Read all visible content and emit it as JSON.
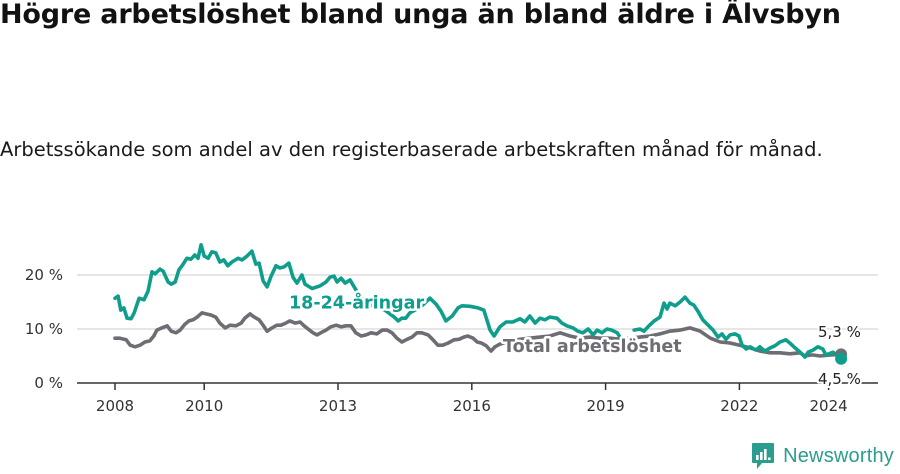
{
  "header": {
    "title": "Högre arbetslöshet bland unga än bland äldre i Älvsbyn",
    "subtitle": "Arbetssökande som andel av den registerbaserade arbetskraften månad för månad."
  },
  "footer": {
    "brand": "Newsworthy",
    "brand_color": "#2a9d8f",
    "icon": "bar-chart-speech-bubble-icon"
  },
  "colors": {
    "youth": "#0f9e8c",
    "total": "#6e6d73",
    "grid": "#dddddd",
    "axis": "#333333"
  },
  "chart_data": {
    "type": "line",
    "title": "Högre arbetslöshet bland unga än bland äldre i Älvsbyn",
    "subtitle": "Arbetssökande som andel av den registerbaserade arbetskraften månad för månad.",
    "xlabel": "",
    "ylabel": "",
    "xlim": [
      2007.2,
      2025.2
    ],
    "ylim": [
      0,
      25
    ],
    "grid": true,
    "y_ticks": [
      {
        "value": 0,
        "label": "0 %"
      },
      {
        "value": 10,
        "label": "10 %"
      },
      {
        "value": 20,
        "label": "20 %"
      }
    ],
    "x_ticks": [
      {
        "value": 2008,
        "label": "2008"
      },
      {
        "value": 2010,
        "label": "2010"
      },
      {
        "value": 2013,
        "label": "2013"
      },
      {
        "value": 2016,
        "label": "2016"
      },
      {
        "value": 2019,
        "label": "2019"
      },
      {
        "value": 2022,
        "label": "2022"
      },
      {
        "value": 2024,
        "label": "2024"
      }
    ],
    "series": [
      {
        "name": "18-24-åringar",
        "color": "#0f9e8c",
        "label": {
          "text": "18-24-åringar",
          "x": 2012.8,
          "y": 14.9
        },
        "end_value": 4.5,
        "end_label": "4,5 %",
        "points": [
          [
            2008.0,
            15.7
          ],
          [
            2008.07,
            16.1
          ],
          [
            2008.13,
            13.5
          ],
          [
            2008.2,
            13.9
          ],
          [
            2008.27,
            12.0
          ],
          [
            2008.36,
            11.9
          ],
          [
            2008.43,
            13.0
          ],
          [
            2008.54,
            15.7
          ],
          [
            2008.65,
            15.4
          ],
          [
            2008.74,
            17.0
          ],
          [
            2008.83,
            20.6
          ],
          [
            2008.9,
            20.2
          ],
          [
            2009.01,
            21.1
          ],
          [
            2009.08,
            20.7
          ],
          [
            2009.19,
            18.7
          ],
          [
            2009.26,
            18.3
          ],
          [
            2009.35,
            18.7
          ],
          [
            2009.43,
            20.9
          ],
          [
            2009.52,
            21.9
          ],
          [
            2009.61,
            23.1
          ],
          [
            2009.7,
            22.9
          ],
          [
            2009.79,
            23.7
          ],
          [
            2009.86,
            23.1
          ],
          [
            2009.93,
            25.6
          ],
          [
            2010.0,
            23.5
          ],
          [
            2010.09,
            23.1
          ],
          [
            2010.17,
            24.3
          ],
          [
            2010.26,
            24.1
          ],
          [
            2010.35,
            22.4
          ],
          [
            2010.44,
            22.8
          ],
          [
            2010.53,
            21.7
          ],
          [
            2010.62,
            22.4
          ],
          [
            2010.76,
            23.1
          ],
          [
            2010.85,
            22.8
          ],
          [
            2010.96,
            23.5
          ],
          [
            2011.07,
            24.4
          ],
          [
            2011.16,
            22.0
          ],
          [
            2011.23,
            22.2
          ],
          [
            2011.32,
            18.9
          ],
          [
            2011.41,
            17.8
          ],
          [
            2011.5,
            19.8
          ],
          [
            2011.61,
            21.7
          ],
          [
            2011.7,
            21.3
          ],
          [
            2011.79,
            21.5
          ],
          [
            2011.9,
            22.2
          ],
          [
            2011.99,
            19.6
          ],
          [
            2012.08,
            18.5
          ],
          [
            2012.19,
            20.0
          ],
          [
            2012.26,
            18.3
          ],
          [
            2012.42,
            17.5
          ],
          [
            2012.6,
            18.0
          ],
          [
            2012.73,
            18.7
          ],
          [
            2012.82,
            19.6
          ],
          [
            2012.91,
            19.8
          ],
          [
            2012.98,
            18.7
          ],
          [
            2013.07,
            19.4
          ],
          [
            2013.16,
            18.5
          ],
          [
            2013.27,
            19.1
          ],
          [
            2013.49,
            16.0
          ],
          [
            2013.72,
            14.5
          ],
          [
            2014.05,
            13.5
          ],
          [
            2014.26,
            12.2
          ],
          [
            2014.35,
            11.5
          ],
          [
            2014.43,
            12.0
          ],
          [
            2014.52,
            12.0
          ],
          [
            2014.61,
            13.0
          ],
          [
            2014.84,
            14.0
          ],
          [
            2015.06,
            15.7
          ],
          [
            2015.2,
            14.6
          ],
          [
            2015.31,
            13.3
          ],
          [
            2015.42,
            11.5
          ],
          [
            2015.56,
            12.4
          ],
          [
            2015.69,
            13.9
          ],
          [
            2015.78,
            14.3
          ],
          [
            2015.96,
            14.2
          ],
          [
            2016.14,
            13.9
          ],
          [
            2016.27,
            13.5
          ],
          [
            2016.41,
            9.8
          ],
          [
            2016.5,
            8.7
          ],
          [
            2016.63,
            10.4
          ],
          [
            2016.77,
            11.3
          ],
          [
            2016.92,
            11.3
          ],
          [
            2017.08,
            11.9
          ],
          [
            2017.19,
            11.3
          ],
          [
            2017.3,
            12.4
          ],
          [
            2017.42,
            11.1
          ],
          [
            2017.53,
            12.0
          ],
          [
            2017.64,
            11.7
          ],
          [
            2017.75,
            12.2
          ],
          [
            2017.91,
            12.0
          ],
          [
            2018.02,
            11.1
          ],
          [
            2018.13,
            10.6
          ],
          [
            2018.27,
            10.2
          ],
          [
            2018.38,
            9.6
          ],
          [
            2018.49,
            9.3
          ],
          [
            2018.61,
            10.0
          ],
          [
            2018.72,
            8.9
          ],
          [
            2018.81,
            9.8
          ],
          [
            2018.92,
            9.3
          ],
          [
            2019.03,
            10.0
          ],
          [
            2019.14,
            9.8
          ],
          [
            2019.26,
            9.3
          ],
          [
            2019.32,
            8.5
          ],
          null,
          [
            2019.64,
            9.8
          ],
          [
            2019.77,
            10.0
          ],
          [
            2019.86,
            9.6
          ],
          [
            2019.97,
            10.6
          ],
          [
            2020.09,
            11.5
          ],
          [
            2020.22,
            12.2
          ],
          [
            2020.31,
            14.8
          ],
          [
            2020.38,
            13.7
          ],
          [
            2020.44,
            14.8
          ],
          [
            2020.56,
            14.3
          ],
          [
            2020.67,
            15.0
          ],
          [
            2020.78,
            15.9
          ],
          [
            2020.89,
            14.8
          ],
          [
            2020.98,
            14.4
          ],
          [
            2021.07,
            13.3
          ],
          [
            2021.18,
            11.7
          ],
          [
            2021.3,
            10.7
          ],
          [
            2021.41,
            9.8
          ],
          [
            2021.52,
            8.5
          ],
          [
            2021.61,
            9.1
          ],
          [
            2021.7,
            8.1
          ],
          [
            2021.79,
            8.9
          ],
          [
            2021.9,
            9.1
          ],
          [
            2021.99,
            8.7
          ],
          [
            2022.06,
            7.0
          ],
          [
            2022.15,
            6.3
          ],
          [
            2022.24,
            6.7
          ],
          [
            2022.37,
            6.1
          ],
          [
            2022.46,
            6.7
          ],
          [
            2022.57,
            5.9
          ],
          [
            2022.69,
            6.5
          ],
          [
            2022.8,
            6.9
          ],
          [
            2022.91,
            7.6
          ],
          [
            2023.04,
            8.0
          ],
          [
            2023.13,
            7.4
          ],
          [
            2023.25,
            6.5
          ],
          [
            2023.36,
            5.7
          ],
          [
            2023.47,
            4.8
          ],
          [
            2023.54,
            5.7
          ],
          [
            2023.65,
            6.1
          ],
          [
            2023.76,
            6.7
          ],
          [
            2023.87,
            6.3
          ],
          [
            2023.94,
            5.2
          ],
          [
            2024.1,
            5.7
          ],
          [
            2024.23,
            4.8
          ],
          [
            2024.28,
            4.5
          ]
        ]
      },
      {
        "name": "Total arbetslöshet",
        "color": "#6e6d73",
        "label": {
          "text": "Total arbetslöshet",
          "x": 2016.85,
          "y": 5.6
        },
        "end_value": 5.3,
        "end_label": "5,3 %",
        "points": [
          [
            2008.0,
            8.3
          ],
          [
            2008.11,
            8.3
          ],
          [
            2008.25,
            8.0
          ],
          [
            2008.34,
            7.0
          ],
          [
            2008.45,
            6.7
          ],
          [
            2008.56,
            7.0
          ],
          [
            2008.67,
            7.6
          ],
          [
            2008.78,
            7.8
          ],
          [
            2008.87,
            8.7
          ],
          [
            2008.94,
            9.8
          ],
          [
            2009.05,
            10.2
          ],
          [
            2009.17,
            10.6
          ],
          [
            2009.26,
            9.6
          ],
          [
            2009.37,
            9.3
          ],
          [
            2009.46,
            9.8
          ],
          [
            2009.57,
            10.9
          ],
          [
            2009.66,
            11.5
          ],
          [
            2009.75,
            11.7
          ],
          [
            2009.84,
            12.2
          ],
          [
            2009.95,
            13.0
          ],
          [
            2010.04,
            12.8
          ],
          [
            2010.15,
            12.6
          ],
          [
            2010.26,
            12.2
          ],
          [
            2010.35,
            11.1
          ],
          [
            2010.47,
            10.2
          ],
          [
            2010.58,
            10.7
          ],
          [
            2010.71,
            10.6
          ],
          [
            2010.83,
            11.1
          ],
          [
            2010.91,
            12.0
          ],
          [
            2011.03,
            12.8
          ],
          [
            2011.12,
            12.2
          ],
          [
            2011.23,
            11.7
          ],
          [
            2011.32,
            10.7
          ],
          [
            2011.41,
            9.6
          ],
          [
            2011.52,
            10.2
          ],
          [
            2011.63,
            10.7
          ],
          [
            2011.72,
            10.7
          ],
          [
            2011.83,
            11.1
          ],
          [
            2011.92,
            11.5
          ],
          [
            2012.04,
            11.1
          ],
          [
            2012.15,
            11.3
          ],
          [
            2012.24,
            10.6
          ],
          [
            2012.33,
            10.0
          ],
          [
            2012.44,
            9.3
          ],
          [
            2012.53,
            8.9
          ],
          [
            2012.64,
            9.4
          ],
          [
            2012.73,
            9.8
          ],
          [
            2012.84,
            10.4
          ],
          [
            2012.96,
            10.7
          ],
          [
            2013.07,
            10.4
          ],
          [
            2013.18,
            10.6
          ],
          [
            2013.29,
            10.6
          ],
          [
            2013.4,
            9.3
          ],
          [
            2013.52,
            8.7
          ],
          [
            2013.63,
            8.9
          ],
          [
            2013.74,
            9.3
          ],
          [
            2013.87,
            9.1
          ],
          [
            2013.99,
            9.8
          ],
          [
            2014.1,
            9.8
          ],
          [
            2014.21,
            9.3
          ],
          [
            2014.32,
            8.3
          ],
          [
            2014.43,
            7.6
          ],
          [
            2014.55,
            8.1
          ],
          [
            2014.66,
            8.5
          ],
          [
            2014.77,
            9.3
          ],
          [
            2014.88,
            9.3
          ],
          [
            2015.02,
            8.9
          ],
          [
            2015.13,
            8.0
          ],
          [
            2015.24,
            7.0
          ],
          [
            2015.35,
            7.0
          ],
          [
            2015.47,
            7.4
          ],
          [
            2015.6,
            8.0
          ],
          [
            2015.71,
            8.1
          ],
          [
            2015.82,
            8.5
          ],
          [
            2015.91,
            8.7
          ],
          [
            2016.03,
            8.3
          ],
          [
            2016.12,
            7.6
          ],
          [
            2016.21,
            7.4
          ],
          [
            2016.32,
            6.9
          ],
          [
            2016.43,
            5.9
          ],
          [
            2016.52,
            6.7
          ],
          [
            2016.63,
            7.2
          ],
          [
            2016.86,
            7.8
          ],
          [
            2017.08,
            8.1
          ],
          [
            2017.3,
            8.3
          ],
          [
            2017.53,
            8.5
          ],
          [
            2017.75,
            8.7
          ],
          [
            2017.98,
            9.3
          ],
          [
            2018.2,
            8.7
          ],
          [
            2018.43,
            8.3
          ],
          [
            2018.65,
            8.5
          ],
          [
            2018.87,
            8.3
          ],
          [
            2019.1,
            8.3
          ],
          [
            2019.32,
            8.1
          ],
          [
            2019.55,
            8.3
          ],
          [
            2019.77,
            8.5
          ],
          [
            2020.0,
            8.7
          ],
          [
            2020.22,
            9.1
          ],
          [
            2020.44,
            9.6
          ],
          [
            2020.67,
            9.8
          ],
          [
            2020.89,
            10.2
          ],
          [
            2021.05,
            9.8
          ],
          [
            2021.12,
            9.6
          ],
          [
            2021.35,
            8.3
          ],
          [
            2021.57,
            7.6
          ],
          [
            2021.79,
            7.4
          ],
          [
            2022.01,
            7.0
          ],
          [
            2022.24,
            6.5
          ],
          [
            2022.46,
            5.9
          ],
          [
            2022.69,
            5.6
          ],
          [
            2022.91,
            5.6
          ],
          [
            2023.13,
            5.4
          ],
          [
            2023.36,
            5.6
          ],
          [
            2023.47,
            5.0
          ],
          [
            2023.63,
            5.2
          ],
          [
            2023.81,
            5.0
          ],
          [
            2024.04,
            5.2
          ],
          [
            2024.28,
            5.3
          ]
        ]
      }
    ],
    "annotations": [
      {
        "text": "5,3 %",
        "series": "Total arbetslöshet",
        "position": "above-end"
      },
      {
        "text": "4,5 %",
        "series": "18-24-åringar",
        "position": "below-end"
      }
    ]
  }
}
